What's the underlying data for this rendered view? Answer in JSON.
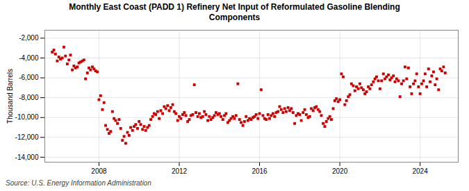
{
  "chart_data": {
    "type": "scatter",
    "title": "Monthly East Coast (PADD 1) Refinery Net Input of Reformulated Gasoline Blending\nComponents",
    "y_label": "Thousand Barrels",
    "annotations": [
      "Source: U.S. Energy Information Administration"
    ],
    "color": "#cc0000",
    "marker": "square",
    "grid": true,
    "xlim": [
      2005.3,
      2025.9
    ],
    "xticks": [
      2008,
      2012,
      2016,
      2020,
      2024
    ],
    "ylim": [
      -14500,
      -1200
    ],
    "yticks": [
      {
        "value": -14000,
        "label": "-14,000"
      },
      {
        "value": -12000,
        "label": "-12,000"
      },
      {
        "value": -10000,
        "label": "-10,000"
      },
      {
        "value": -8000,
        "label": "-8,000"
      },
      {
        "value": -6000,
        "label": "-6,000"
      },
      {
        "value": -4000,
        "label": "-4,000"
      },
      {
        "value": -2000,
        "label": "-2,000"
      }
    ],
    "x": [
      2005.67,
      2005.75,
      2005.83,
      2005.92,
      2006.0,
      2006.08,
      2006.17,
      2006.25,
      2006.33,
      2006.42,
      2006.5,
      2006.58,
      2006.67,
      2006.75,
      2006.83,
      2006.92,
      2007.0,
      2007.08,
      2007.17,
      2007.25,
      2007.33,
      2007.42,
      2007.5,
      2007.58,
      2007.67,
      2007.75,
      2007.83,
      2007.92,
      2008.0,
      2008.08,
      2008.17,
      2008.25,
      2008.33,
      2008.42,
      2008.5,
      2008.58,
      2008.67,
      2008.75,
      2008.83,
      2008.92,
      2009.0,
      2009.08,
      2009.17,
      2009.25,
      2009.33,
      2009.42,
      2009.5,
      2009.58,
      2009.67,
      2009.75,
      2009.83,
      2009.92,
      2010.0,
      2010.08,
      2010.17,
      2010.25,
      2010.33,
      2010.42,
      2010.5,
      2010.58,
      2010.67,
      2010.75,
      2010.83,
      2010.92,
      2011.0,
      2011.08,
      2011.17,
      2011.25,
      2011.33,
      2011.42,
      2011.5,
      2011.58,
      2011.67,
      2011.75,
      2011.83,
      2011.92,
      2012.0,
      2012.08,
      2012.17,
      2012.25,
      2012.33,
      2012.42,
      2012.5,
      2012.58,
      2012.67,
      2012.75,
      2012.83,
      2012.92,
      2013.0,
      2013.08,
      2013.17,
      2013.25,
      2013.33,
      2013.42,
      2013.5,
      2013.58,
      2013.67,
      2013.75,
      2013.83,
      2013.92,
      2014.0,
      2014.08,
      2014.17,
      2014.25,
      2014.33,
      2014.42,
      2014.5,
      2014.58,
      2014.67,
      2014.75,
      2014.83,
      2014.92,
      2015.0,
      2015.08,
      2015.17,
      2015.25,
      2015.33,
      2015.42,
      2015.5,
      2015.58,
      2015.67,
      2015.75,
      2015.83,
      2015.92,
      2016.0,
      2016.08,
      2016.17,
      2016.25,
      2016.33,
      2016.42,
      2016.5,
      2016.58,
      2016.67,
      2016.75,
      2016.83,
      2016.92,
      2017.0,
      2017.08,
      2017.17,
      2017.25,
      2017.33,
      2017.42,
      2017.5,
      2017.58,
      2017.67,
      2017.75,
      2017.83,
      2017.92,
      2018.0,
      2018.08,
      2018.17,
      2018.25,
      2018.33,
      2018.42,
      2018.5,
      2018.58,
      2018.67,
      2018.75,
      2018.83,
      2018.92,
      2019.0,
      2019.08,
      2019.17,
      2019.25,
      2019.33,
      2019.42,
      2019.5,
      2019.58,
      2019.67,
      2019.75,
      2019.83,
      2019.92,
      2020.0,
      2020.08,
      2020.17,
      2020.25,
      2020.33,
      2020.42,
      2020.5,
      2020.58,
      2020.67,
      2020.75,
      2020.83,
      2020.92,
      2021.0,
      2021.08,
      2021.17,
      2021.25,
      2021.33,
      2021.42,
      2021.5,
      2021.58,
      2021.67,
      2021.75,
      2021.83,
      2021.92,
      2022.0,
      2022.08,
      2022.17,
      2022.25,
      2022.33,
      2022.42,
      2022.5,
      2022.58,
      2022.67,
      2022.75,
      2022.83,
      2022.92,
      2023.0,
      2023.08,
      2023.17,
      2023.25,
      2023.33,
      2023.42,
      2023.5,
      2023.58,
      2023.67,
      2023.75,
      2023.83,
      2023.92,
      2024.0,
      2024.08,
      2024.17,
      2024.25,
      2024.33,
      2024.42,
      2024.5,
      2024.58,
      2024.67,
      2024.75,
      2024.83,
      2024.92,
      2025.0,
      2025.08,
      2025.17,
      2025.25
    ],
    "values": [
      -3400,
      -3200,
      -3600,
      -4300,
      -3900,
      -4100,
      -4000,
      -2900,
      -3800,
      -4600,
      -4200,
      -3700,
      -5200,
      -4800,
      -5000,
      -4900,
      -4500,
      -4400,
      -4300,
      -4200,
      -6100,
      -5500,
      -5000,
      -5200,
      -4900,
      -5100,
      -5300,
      -5400,
      -8200,
      -7800,
      -9200,
      -8500,
      -10800,
      -11200,
      -11600,
      -11400,
      -9400,
      -10100,
      -10300,
      -10600,
      -10200,
      -11100,
      -12300,
      -11900,
      -12600,
      -11500,
      -11800,
      -11000,
      -11300,
      -10900,
      -10700,
      -11100,
      -10400,
      -10700,
      -11200,
      -10900,
      -11300,
      -11000,
      -10800,
      -10200,
      -9900,
      -9600,
      -9700,
      -9400,
      -10100,
      -9300,
      -9600,
      -8900,
      -9100,
      -8800,
      -9300,
      -9000,
      -8700,
      -9400,
      -9600,
      -10300,
      -9900,
      -10100,
      -9700,
      -9500,
      -9800,
      -10400,
      -10200,
      -9800,
      -9700,
      -6700,
      -9500,
      -9900,
      -9600,
      -10000,
      -9900,
      -9400,
      -9700,
      -10300,
      -9900,
      -10200,
      -10000,
      -9800,
      -9500,
      -9700,
      -9600,
      -9900,
      -10200,
      -9800,
      -9600,
      -10500,
      -10300,
      -10100,
      -9900,
      -10100,
      -9800,
      -6600,
      -10200,
      -10500,
      -10800,
      -10400,
      -9900,
      -10300,
      -10100,
      -10200,
      -10000,
      -9900,
      -9700,
      -10100,
      -9600,
      -7200,
      -9800,
      -10100,
      -10200,
      -9700,
      -10100,
      -9800,
      -9600,
      -9900,
      -9500,
      -9400,
      -8900,
      -9200,
      -9500,
      -9100,
      -9400,
      -9000,
      -9300,
      -9100,
      -9500,
      -10600,
      -9800,
      -9600,
      -9700,
      -10300,
      -9500,
      -9200,
      -9700,
      -10000,
      -9900,
      -9100,
      -9300,
      -9000,
      -8900,
      -9200,
      -9400,
      -9800,
      -10600,
      -10900,
      -10400,
      -10100,
      -9900,
      -10200,
      -9100,
      -8300,
      -8100,
      -8400,
      -8200,
      -5600,
      -5900,
      -8700,
      -8300,
      -7900,
      -7700,
      -6600,
      -6800,
      -7300,
      -6900,
      -7100,
      -6600,
      -7000,
      -7200,
      -7600,
      -7400,
      -6900,
      -7100,
      -6700,
      -6400,
      -6100,
      -5900,
      -6300,
      -7100,
      -6300,
      -5600,
      -6100,
      -5900,
      -5700,
      -6200,
      -6000,
      -5800,
      -6400,
      -6100,
      -6300,
      -7900,
      -6600,
      -6300,
      -4900,
      -6100,
      -5000,
      -6900,
      -7600,
      -6600,
      -6300,
      -5600,
      -6900,
      -7600,
      -6600,
      -6300,
      -5600,
      -6900,
      -5100,
      -6400,
      -5800,
      -5400,
      -6700,
      -6100,
      -7200,
      -5100,
      -5300,
      -4900,
      -5500
    ]
  }
}
